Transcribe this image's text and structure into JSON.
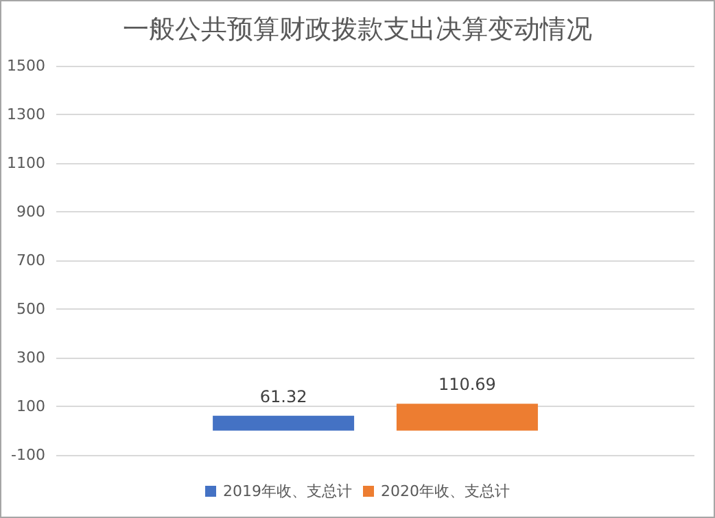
{
  "chart_data": {
    "type": "bar",
    "title": "一般公共预算财政拨款支出决算变动情况",
    "categories": [
      null
    ],
    "series": [
      {
        "name": "2019年收、支总计",
        "color": "#4472c4",
        "values": [
          61.32
        ]
      },
      {
        "name": "2020年收、支总计",
        "color": "#ed7d31",
        "values": [
          110.69
        ]
      }
    ],
    "ylim": [
      -100,
      1500
    ],
    "yticks": [
      -100,
      100,
      300,
      500,
      700,
      900,
      1100,
      1300,
      1500
    ],
    "grid": "y",
    "legend": "bottom",
    "data_labels": true
  }
}
